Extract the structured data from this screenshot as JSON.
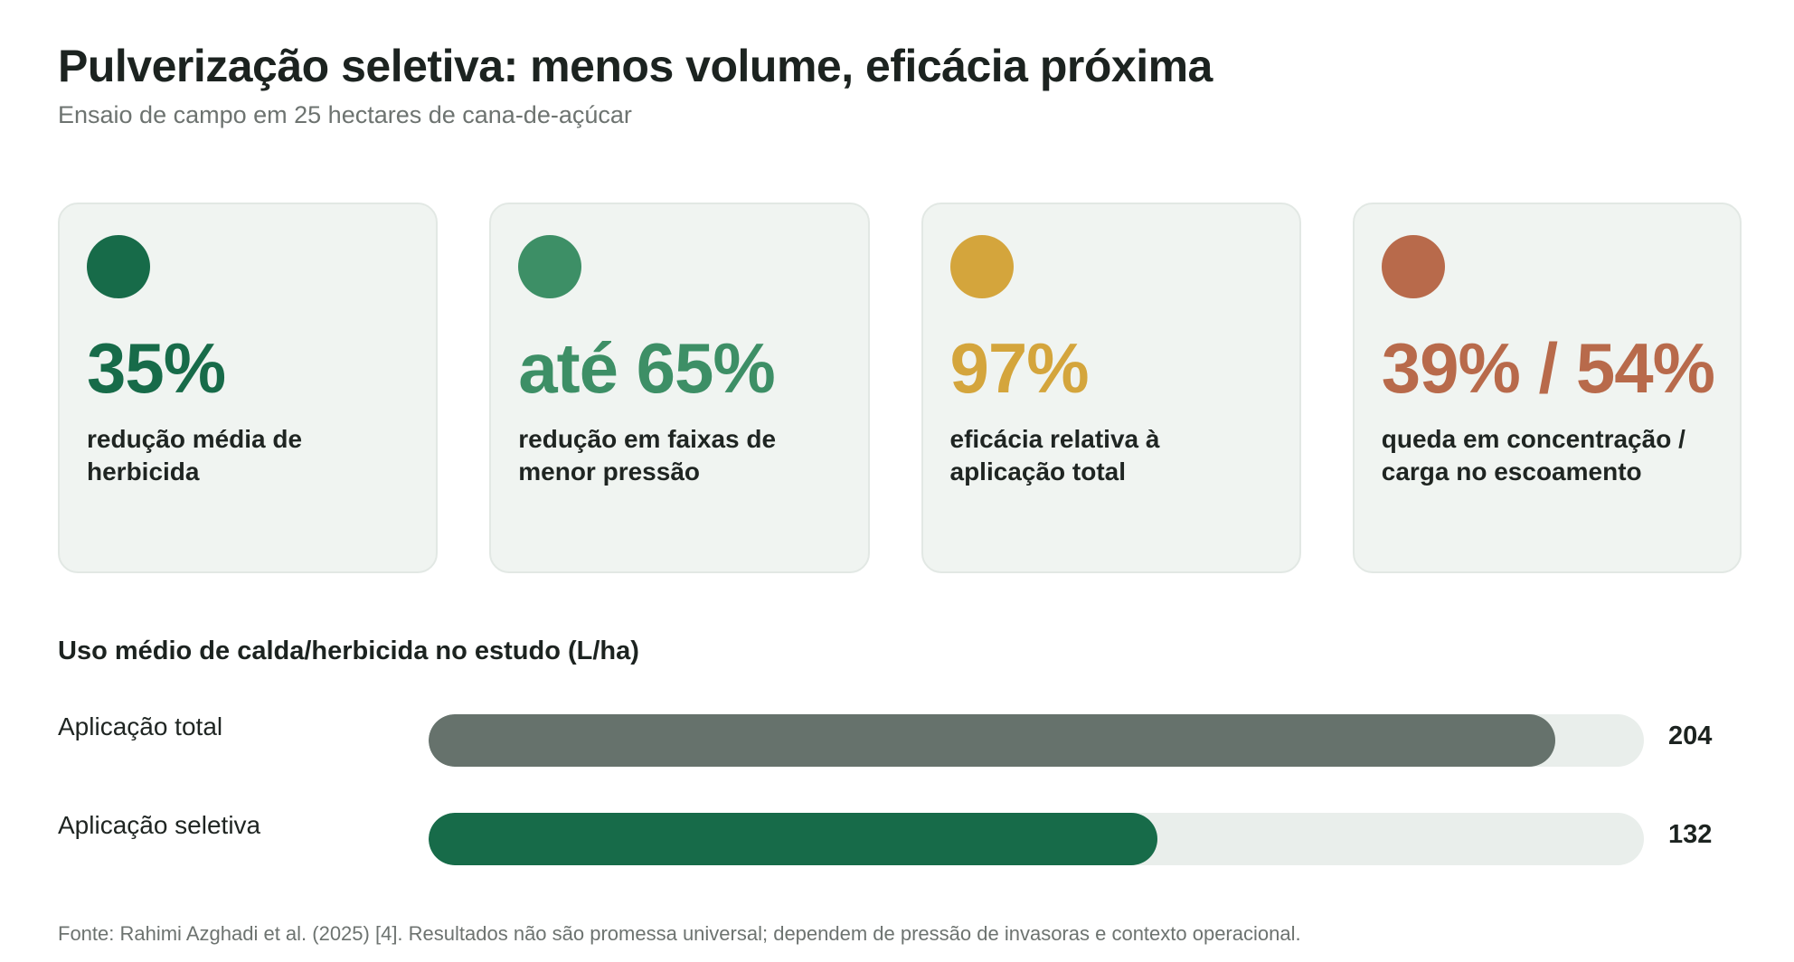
{
  "title": "Pulverização seletiva: menos volume, eficácia próxima",
  "subtitle": "Ensaio de campo em 25 hectares de cana-de-açúcar",
  "cards": [
    {
      "stat": "35%",
      "description": "redução média de herbicida",
      "color": "#176b49",
      "icon": "dot-icon"
    },
    {
      "stat": "até 65%",
      "description": "redução em faixas de menor pressão",
      "color": "#3d8f66",
      "icon": "dot-icon"
    },
    {
      "stat": "97%",
      "description": "eficácia relativa à aplicação total",
      "color": "#d4a53c",
      "icon": "dot-icon"
    },
    {
      "stat": "39% / 54%",
      "description": "queda em concentração / carga no escoamento",
      "color": "#b86a4b",
      "icon": "dot-icon"
    }
  ],
  "chart_data": {
    "type": "bar",
    "orientation": "horizontal",
    "title": "Uso médio de calda/herbicida no estudo (L/ha)",
    "categories": [
      "Aplicação total",
      "Aplicação seletiva"
    ],
    "values": [
      204,
      132
    ],
    "value_labels": [
      "204",
      "132"
    ],
    "colors": [
      "#66726c",
      "#176b49"
    ],
    "track_color": "#e9eeeb",
    "xlim": [
      0,
      220
    ],
    "grid": false
  },
  "source": "Fonte: Rahimi Azghadi et al. (2025) [4]. Resultados não são promessa universal; dependem de pressão de invasoras e contexto operacional."
}
